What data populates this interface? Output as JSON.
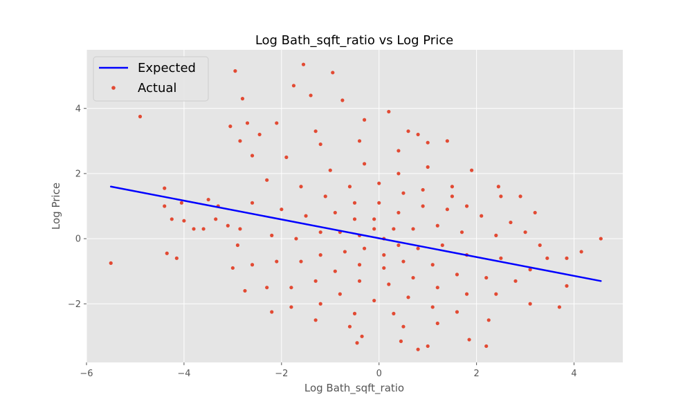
{
  "chart_data": {
    "type": "scatter",
    "title": "Log Bath_sqft_ratio vs Log Price",
    "xlabel": "Log Bath_sqft_ratio",
    "ylabel": "Log Price",
    "xlim": [
      -6,
      5
    ],
    "ylim": [
      -3.8,
      5.8
    ],
    "xticks": [
      -6,
      -4,
      -2,
      0,
      2,
      4
    ],
    "yticks": [
      -2,
      0,
      2,
      4
    ],
    "grid": true,
    "legend_position": "top-left",
    "series": [
      {
        "name": "Expected",
        "kind": "line",
        "color": "#0000ff",
        "x": [
          -5.5,
          4.55
        ],
        "y": [
          1.6,
          -1.3
        ]
      },
      {
        "name": "Actual",
        "kind": "scatter",
        "color": "#e24a33",
        "points": [
          [
            -5.5,
            -0.75
          ],
          [
            -4.9,
            3.75
          ],
          [
            -4.4,
            1.55
          ],
          [
            -4.4,
            1.0
          ],
          [
            -4.35,
            -0.45
          ],
          [
            -4.25,
            0.6
          ],
          [
            -4.15,
            -0.6
          ],
          [
            -4.05,
            1.1
          ],
          [
            -4.0,
            0.55
          ],
          [
            -2.95,
            5.15
          ],
          [
            -2.8,
            4.3
          ],
          [
            -2.7,
            3.55
          ],
          [
            -2.85,
            3.0
          ],
          [
            -3.05,
            3.45
          ],
          [
            -1.55,
            5.35
          ],
          [
            -0.95,
            5.1
          ],
          [
            -1.75,
            4.7
          ],
          [
            -1.4,
            4.4
          ],
          [
            -0.75,
            4.25
          ],
          [
            0.2,
            3.9
          ],
          [
            1.0,
            2.95
          ],
          [
            1.4,
            3.0
          ],
          [
            0.8,
            3.2
          ],
          [
            4.55,
            0.0
          ],
          [
            4.15,
            -0.4
          ],
          [
            3.85,
            -0.6
          ],
          [
            3.85,
            -1.45
          ],
          [
            3.7,
            -2.1
          ],
          [
            3.1,
            -2.0
          ],
          [
            2.9,
            1.3
          ],
          [
            3.2,
            0.8
          ],
          [
            2.5,
            1.3
          ],
          [
            2.45,
            1.6
          ],
          [
            1.9,
            2.1
          ],
          [
            2.25,
            -2.5
          ],
          [
            1.85,
            -3.1
          ],
          [
            2.2,
            -3.3
          ],
          [
            1.0,
            -3.3
          ],
          [
            0.45,
            -3.15
          ],
          [
            0.8,
            -3.4
          ],
          [
            -0.35,
            -3.0
          ],
          [
            -0.45,
            -3.2
          ],
          [
            -2.2,
            -2.25
          ],
          [
            -2.75,
            -1.6
          ],
          [
            -3.0,
            -0.9
          ],
          [
            -3.5,
            1.2
          ],
          [
            -3.3,
            1.0
          ],
          [
            -3.6,
            0.3
          ],
          [
            -3.8,
            0.3
          ],
          [
            -3.35,
            0.6
          ],
          [
            -2.85,
            0.3
          ],
          [
            -2.6,
            2.55
          ],
          [
            -2.45,
            3.2
          ],
          [
            -2.1,
            3.55
          ],
          [
            -1.3,
            3.3
          ],
          [
            -0.3,
            3.65
          ],
          [
            0.6,
            3.3
          ],
          [
            1.5,
            1.6
          ],
          [
            1.8,
            1.0
          ],
          [
            2.7,
            0.5
          ],
          [
            3.0,
            0.2
          ],
          [
            3.3,
            -0.2
          ],
          [
            3.45,
            -0.6
          ],
          [
            3.1,
            -0.95
          ],
          [
            2.8,
            -1.3
          ],
          [
            2.4,
            -1.7
          ],
          [
            1.6,
            -2.25
          ],
          [
            1.2,
            -2.6
          ],
          [
            0.5,
            -2.7
          ],
          [
            -0.6,
            -2.7
          ],
          [
            -1.3,
            -2.5
          ],
          [
            -1.8,
            -2.1
          ],
          [
            -2.3,
            -1.5
          ],
          [
            -2.6,
            -0.8
          ],
          [
            -2.9,
            -0.2
          ],
          [
            -3.1,
            0.4
          ],
          [
            -2.6,
            1.1
          ],
          [
            -2.3,
            1.8
          ],
          [
            -1.9,
            2.5
          ],
          [
            -1.2,
            2.9
          ],
          [
            -0.4,
            3.0
          ],
          [
            0.4,
            2.7
          ],
          [
            1.0,
            2.2
          ],
          [
            1.5,
            1.3
          ],
          [
            2.1,
            0.7
          ],
          [
            2.4,
            0.1
          ],
          [
            2.5,
            -0.6
          ],
          [
            2.2,
            -1.2
          ],
          [
            1.8,
            -1.7
          ],
          [
            1.1,
            -2.1
          ],
          [
            0.3,
            -2.3
          ],
          [
            -0.5,
            -2.3
          ],
          [
            -1.2,
            -2.0
          ],
          [
            -1.8,
            -1.5
          ],
          [
            -2.1,
            -0.7
          ],
          [
            -2.2,
            0.1
          ],
          [
            -2.0,
            0.9
          ],
          [
            -1.6,
            1.6
          ],
          [
            -1.0,
            2.1
          ],
          [
            -0.3,
            2.3
          ],
          [
            0.4,
            2.0
          ],
          [
            0.9,
            1.5
          ],
          [
            1.4,
            0.9
          ],
          [
            1.7,
            0.2
          ],
          [
            1.8,
            -0.5
          ],
          [
            1.6,
            -1.1
          ],
          [
            1.2,
            -1.5
          ],
          [
            0.6,
            -1.8
          ],
          [
            -0.1,
            -1.9
          ],
          [
            -0.8,
            -1.7
          ],
          [
            -1.3,
            -1.3
          ],
          [
            -1.6,
            -0.7
          ],
          [
            -1.7,
            0.0
          ],
          [
            -1.5,
            0.7
          ],
          [
            -1.1,
            1.3
          ],
          [
            -0.6,
            1.6
          ],
          [
            0.0,
            1.7
          ],
          [
            0.5,
            1.4
          ],
          [
            0.9,
            1.0
          ],
          [
            1.2,
            0.4
          ],
          [
            1.3,
            -0.2
          ],
          [
            1.1,
            -0.8
          ],
          [
            0.7,
            -1.2
          ],
          [
            0.2,
            -1.4
          ],
          [
            -0.4,
            -1.3
          ],
          [
            -0.9,
            -1.0
          ],
          [
            -1.2,
            -0.5
          ],
          [
            -1.2,
            0.2
          ],
          [
            -0.9,
            0.8
          ],
          [
            -0.5,
            1.1
          ],
          [
            0.0,
            1.1
          ],
          [
            0.4,
            0.8
          ],
          [
            0.7,
            0.3
          ],
          [
            0.8,
            -0.3
          ],
          [
            0.5,
            -0.7
          ],
          [
            0.1,
            -0.9
          ],
          [
            -0.4,
            -0.8
          ],
          [
            -0.7,
            -0.4
          ],
          [
            -0.8,
            0.2
          ],
          [
            -0.5,
            0.6
          ],
          [
            -0.1,
            0.6
          ],
          [
            0.3,
            0.3
          ],
          [
            0.4,
            -0.2
          ],
          [
            0.1,
            -0.5
          ],
          [
            -0.3,
            -0.3
          ],
          [
            -0.4,
            0.1
          ],
          [
            -0.1,
            0.3
          ],
          [
            0.1,
            0.0
          ]
        ]
      }
    ]
  }
}
